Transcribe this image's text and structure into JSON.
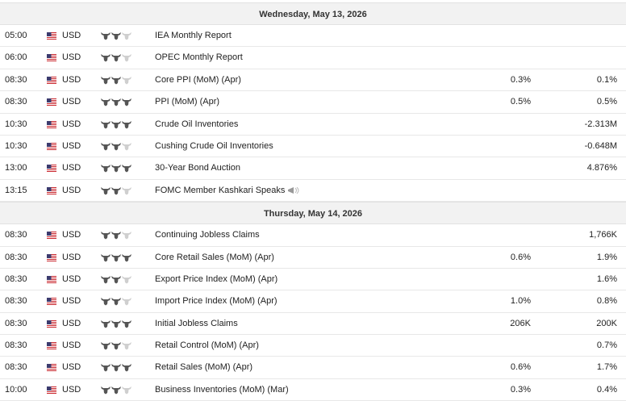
{
  "days": [
    {
      "title": "Wednesday, May 13, 2026",
      "rows": [
        {
          "time": "05:00",
          "currency": "USD",
          "importance": 2,
          "event": "IEA Monthly Report",
          "forecast": null,
          "previous": null
        },
        {
          "time": "06:00",
          "currency": "USD",
          "importance": 2,
          "event": "OPEC Monthly Report",
          "forecast": null,
          "previous": null
        },
        {
          "time": "08:30",
          "currency": "USD",
          "importance": 2,
          "event": "Core PPI (MoM) (Apr)",
          "forecast": "0.3%",
          "previous": "0.1%"
        },
        {
          "time": "08:30",
          "currency": "USD",
          "importance": 3,
          "event": "PPI (MoM) (Apr)",
          "forecast": "0.5%",
          "previous": "0.5%"
        },
        {
          "time": "10:30",
          "currency": "USD",
          "importance": 3,
          "event": "Crude Oil Inventories",
          "forecast": null,
          "previous": "-2.313M"
        },
        {
          "time": "10:30",
          "currency": "USD",
          "importance": 2,
          "event": "Cushing Crude Oil Inventories",
          "forecast": null,
          "previous": "-0.648M"
        },
        {
          "time": "13:00",
          "currency": "USD",
          "importance": 3,
          "event": "30-Year Bond Auction",
          "forecast": null,
          "previous": "4.876%"
        },
        {
          "time": "13:15",
          "currency": "USD",
          "importance": 2,
          "event": "FOMC Member Kashkari Speaks",
          "speech": true,
          "forecast": null,
          "previous": null
        }
      ]
    },
    {
      "title": "Thursday, May 14, 2026",
      "rows": [
        {
          "time": "08:30",
          "currency": "USD",
          "importance": 2,
          "event": "Continuing Jobless Claims",
          "forecast": null,
          "previous": "1,766K"
        },
        {
          "time": "08:30",
          "currency": "USD",
          "importance": 3,
          "event": "Core Retail Sales (MoM) (Apr)",
          "forecast": "0.6%",
          "previous": "1.9%"
        },
        {
          "time": "08:30",
          "currency": "USD",
          "importance": 2,
          "event": "Export Price Index (MoM) (Apr)",
          "forecast": null,
          "previous": "1.6%"
        },
        {
          "time": "08:30",
          "currency": "USD",
          "importance": 2,
          "event": "Import Price Index (MoM) (Apr)",
          "forecast": "1.0%",
          "previous": "0.8%"
        },
        {
          "time": "08:30",
          "currency": "USD",
          "importance": 3,
          "event": "Initial Jobless Claims",
          "forecast": "206K",
          "previous": "200K"
        },
        {
          "time": "08:30",
          "currency": "USD",
          "importance": 2,
          "event": "Retail Control (MoM) (Apr)",
          "forecast": null,
          "previous": "0.7%"
        },
        {
          "time": "08:30",
          "currency": "USD",
          "importance": 3,
          "event": "Retail Sales (MoM) (Apr)",
          "forecast": "0.6%",
          "previous": "1.7%"
        },
        {
          "time": "10:00",
          "currency": "USD",
          "importance": 2,
          "event": "Business Inventories (MoM) (Mar)",
          "forecast": "0.3%",
          "previous": "0.4%"
        }
      ]
    }
  ]
}
